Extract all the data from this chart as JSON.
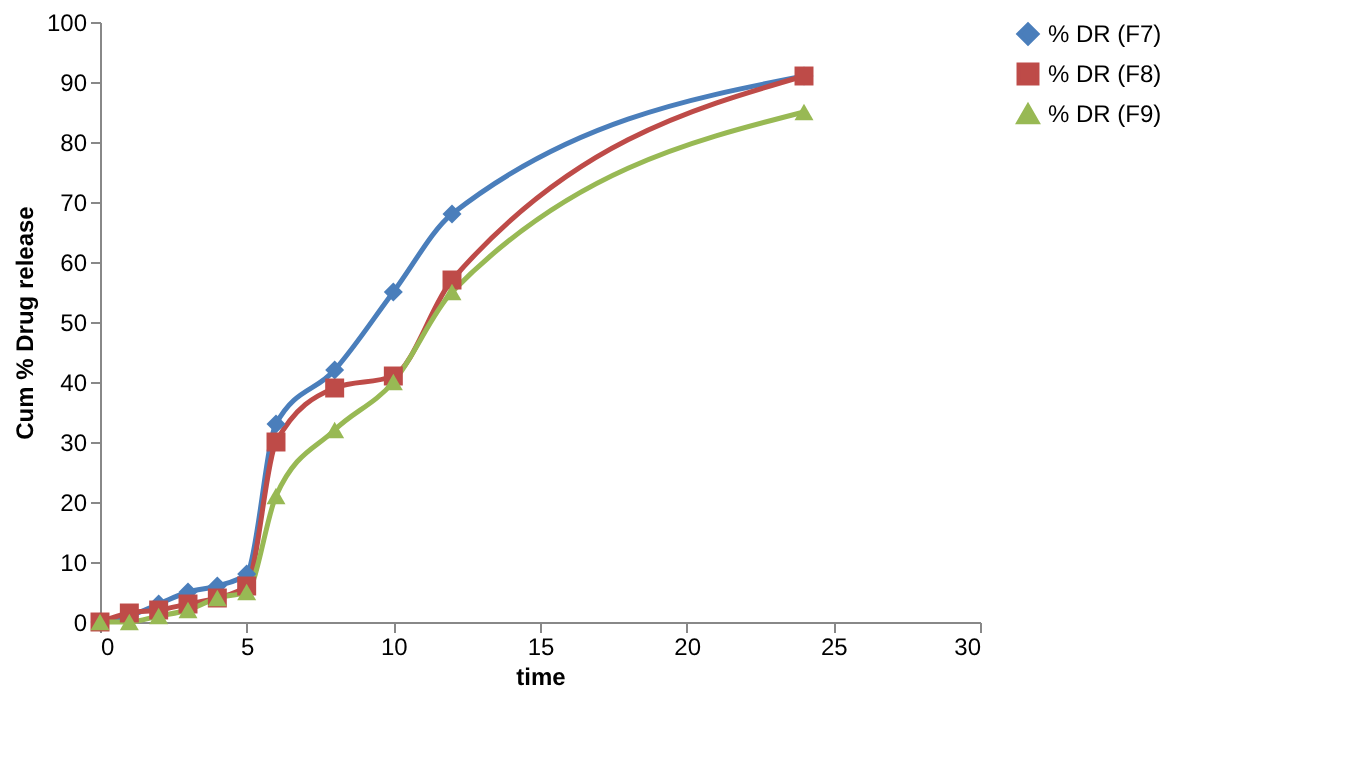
{
  "chart_data": {
    "type": "line",
    "xlabel": "time",
    "ylabel": "Cum % Drug release",
    "x": [
      0,
      1,
      2,
      3,
      4,
      5,
      6,
      8,
      10,
      12,
      24
    ],
    "series": [
      {
        "name": "% DR (F7)",
        "color": "#4a7ebb",
        "marker": "diamond",
        "values": [
          0,
          1,
          3,
          5,
          6,
          8,
          33,
          42,
          55,
          68,
          91
        ]
      },
      {
        "name": "% DR (F8)",
        "color": "#be4b48",
        "marker": "square",
        "values": [
          0,
          1.5,
          2,
          3,
          4,
          6,
          30,
          39,
          41,
          57,
          91
        ]
      },
      {
        "name": "% DR (F9)",
        "color": "#98b954",
        "marker": "triangle",
        "values": [
          0,
          0,
          1,
          2,
          4,
          5,
          21,
          32,
          40,
          55,
          85
        ]
      }
    ],
    "xlim": [
      0,
      30
    ],
    "xticks": [
      0,
      5,
      10,
      15,
      20,
      25,
      30
    ],
    "ylim": [
      0,
      100
    ],
    "yticks": [
      0,
      10,
      20,
      30,
      40,
      50,
      60,
      70,
      80,
      90,
      100
    ],
    "grid": false,
    "legend": "right",
    "line_style": "solid"
  }
}
